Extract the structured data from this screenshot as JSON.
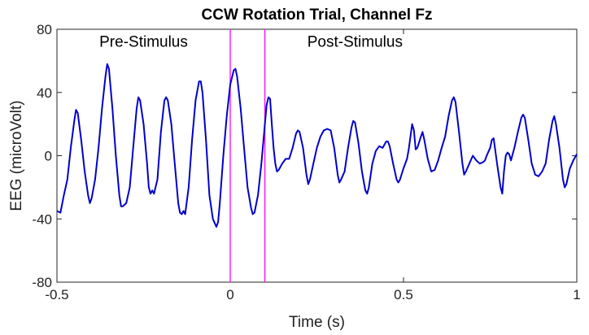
{
  "chart_data": {
    "type": "line",
    "title": "CCW Rotation Trial, Channel Fz",
    "xlabel": "Time (s)",
    "ylabel": "EEG (microVolt)",
    "xlim": [
      -0.5,
      1
    ],
    "ylim": [
      -80,
      80
    ],
    "x_ticks": [
      -0.5,
      0,
      0.5,
      1
    ],
    "x_tick_labels": [
      "-0.5",
      "0",
      "0.5",
      "1"
    ],
    "y_ticks": [
      -80,
      -40,
      0,
      40,
      80
    ],
    "y_tick_labels": [
      "-80",
      "-40",
      "0",
      "40",
      "80"
    ],
    "grid": false,
    "legend": "none",
    "annotations": [
      {
        "text": "Pre-Stimulus",
        "x": -0.25,
        "y": 69
      },
      {
        "text": "Post-Stimulus",
        "x": 0.36,
        "y": 69
      }
    ],
    "vertical_lines": [
      {
        "x": 0,
        "color": "#ff00ff"
      },
      {
        "x": 0.1,
        "color": "#ff00ff"
      }
    ],
    "series": [
      {
        "color": "#0000cc",
        "points": [
          [
            -0.5,
            -35
          ],
          [
            -0.49,
            -36
          ],
          [
            -0.48,
            -25
          ],
          [
            -0.47,
            -15
          ],
          [
            -0.46,
            5
          ],
          [
            -0.45,
            22
          ],
          [
            -0.445,
            29
          ],
          [
            -0.44,
            27
          ],
          [
            -0.43,
            10
          ],
          [
            -0.42,
            -10
          ],
          [
            -0.41,
            -25
          ],
          [
            -0.405,
            -30
          ],
          [
            -0.4,
            -27
          ],
          [
            -0.39,
            -15
          ],
          [
            -0.38,
            5
          ],
          [
            -0.37,
            30
          ],
          [
            -0.36,
            50
          ],
          [
            -0.355,
            58
          ],
          [
            -0.35,
            55
          ],
          [
            -0.34,
            30
          ],
          [
            -0.33,
            0
          ],
          [
            -0.32,
            -25
          ],
          [
            -0.315,
            -32
          ],
          [
            -0.31,
            -32
          ],
          [
            -0.3,
            -30
          ],
          [
            -0.29,
            -20
          ],
          [
            -0.28,
            5
          ],
          [
            -0.27,
            30
          ],
          [
            -0.265,
            37
          ],
          [
            -0.26,
            35
          ],
          [
            -0.25,
            20
          ],
          [
            -0.24,
            -5
          ],
          [
            -0.235,
            -20
          ],
          [
            -0.23,
            -24
          ],
          [
            -0.225,
            -22
          ],
          [
            -0.22,
            -24
          ],
          [
            -0.21,
            -15
          ],
          [
            -0.2,
            15
          ],
          [
            -0.19,
            35
          ],
          [
            -0.185,
            37
          ],
          [
            -0.18,
            35
          ],
          [
            -0.17,
            20
          ],
          [
            -0.16,
            -5
          ],
          [
            -0.15,
            -30
          ],
          [
            -0.145,
            -36
          ],
          [
            -0.14,
            -37
          ],
          [
            -0.135,
            -35
          ],
          [
            -0.13,
            -37
          ],
          [
            -0.12,
            -20
          ],
          [
            -0.11,
            10
          ],
          [
            -0.1,
            35
          ],
          [
            -0.09,
            47
          ],
          [
            -0.085,
            47
          ],
          [
            -0.08,
            40
          ],
          [
            -0.07,
            10
          ],
          [
            -0.06,
            -25
          ],
          [
            -0.05,
            -40
          ],
          [
            -0.04,
            -45
          ],
          [
            -0.035,
            -42
          ],
          [
            -0.03,
            -30
          ],
          [
            -0.02,
            0
          ],
          [
            -0.01,
            25
          ],
          [
            0.0,
            45
          ],
          [
            0.01,
            54
          ],
          [
            0.015,
            55
          ],
          [
            0.02,
            50
          ],
          [
            0.03,
            30
          ],
          [
            0.04,
            5
          ],
          [
            0.05,
            -20
          ],
          [
            0.06,
            -33
          ],
          [
            0.065,
            -37
          ],
          [
            0.07,
            -36
          ],
          [
            0.08,
            -25
          ],
          [
            0.09,
            -5
          ],
          [
            0.1,
            20
          ],
          [
            0.105,
            32
          ],
          [
            0.11,
            37
          ],
          [
            0.115,
            36
          ],
          [
            0.12,
            20
          ],
          [
            0.125,
            5
          ],
          [
            0.13,
            -5
          ],
          [
            0.135,
            -10
          ],
          [
            0.14,
            -9
          ],
          [
            0.15,
            -5
          ],
          [
            0.16,
            -2
          ],
          [
            0.17,
            -2
          ],
          [
            0.18,
            5
          ],
          [
            0.19,
            14
          ],
          [
            0.195,
            16
          ],
          [
            0.2,
            15
          ],
          [
            0.21,
            5
          ],
          [
            0.22,
            -12
          ],
          [
            0.225,
            -18
          ],
          [
            0.23,
            -15
          ],
          [
            0.24,
            -5
          ],
          [
            0.25,
            5
          ],
          [
            0.26,
            12
          ],
          [
            0.27,
            16
          ],
          [
            0.28,
            17
          ],
          [
            0.29,
            16
          ],
          [
            0.3,
            5
          ],
          [
            0.31,
            -12
          ],
          [
            0.315,
            -17
          ],
          [
            0.32,
            -15
          ],
          [
            0.33,
            -10
          ],
          [
            0.34,
            5
          ],
          [
            0.35,
            18
          ],
          [
            0.355,
            22
          ],
          [
            0.36,
            21
          ],
          [
            0.37,
            8
          ],
          [
            0.38,
            -10
          ],
          [
            0.39,
            -22
          ],
          [
            0.395,
            -24
          ],
          [
            0.4,
            -20
          ],
          [
            0.41,
            -5
          ],
          [
            0.42,
            3
          ],
          [
            0.43,
            6
          ],
          [
            0.44,
            5
          ],
          [
            0.45,
            9
          ],
          [
            0.455,
            9
          ],
          [
            0.46,
            6
          ],
          [
            0.47,
            -5
          ],
          [
            0.48,
            -15
          ],
          [
            0.485,
            -17
          ],
          [
            0.49,
            -15
          ],
          [
            0.5,
            -8
          ],
          [
            0.51,
            -2
          ],
          [
            0.515,
            4
          ],
          [
            0.52,
            12
          ],
          [
            0.525,
            20
          ],
          [
            0.53,
            16
          ],
          [
            0.535,
            4
          ],
          [
            0.54,
            5
          ],
          [
            0.55,
            12
          ],
          [
            0.555,
            15
          ],
          [
            0.56,
            10
          ],
          [
            0.57,
            -2
          ],
          [
            0.58,
            -10
          ],
          [
            0.59,
            -9
          ],
          [
            0.6,
            -3
          ],
          [
            0.61,
            5
          ],
          [
            0.62,
            12
          ],
          [
            0.63,
            25
          ],
          [
            0.64,
            35
          ],
          [
            0.645,
            37
          ],
          [
            0.65,
            34
          ],
          [
            0.66,
            15
          ],
          [
            0.67,
            -5
          ],
          [
            0.675,
            -12
          ],
          [
            0.68,
            -10
          ],
          [
            0.69,
            -5
          ],
          [
            0.7,
            0
          ],
          [
            0.71,
            -3
          ],
          [
            0.72,
            -5
          ],
          [
            0.73,
            -4
          ],
          [
            0.735,
            -3
          ],
          [
            0.74,
            0
          ],
          [
            0.75,
            5
          ],
          [
            0.755,
            10
          ],
          [
            0.76,
            11
          ],
          [
            0.77,
            -5
          ],
          [
            0.78,
            -20
          ],
          [
            0.785,
            -24
          ],
          [
            0.79,
            -10
          ],
          [
            0.795,
            0
          ],
          [
            0.8,
            2
          ],
          [
            0.805,
            1
          ],
          [
            0.81,
            -3
          ],
          [
            0.82,
            5
          ],
          [
            0.83,
            15
          ],
          [
            0.84,
            24
          ],
          [
            0.845,
            26
          ],
          [
            0.85,
            24
          ],
          [
            0.86,
            10
          ],
          [
            0.87,
            -5
          ],
          [
            0.88,
            -12
          ],
          [
            0.89,
            -13
          ],
          [
            0.9,
            -10
          ],
          [
            0.91,
            -5
          ],
          [
            0.92,
            10
          ],
          [
            0.93,
            22
          ],
          [
            0.935,
            25
          ],
          [
            0.94,
            20
          ],
          [
            0.95,
            5
          ],
          [
            0.96,
            -15
          ],
          [
            0.965,
            -20
          ],
          [
            0.97,
            -18
          ],
          [
            0.98,
            -8
          ],
          [
            0.99,
            -3
          ],
          [
            1.0,
            1
          ]
        ]
      }
    ]
  }
}
